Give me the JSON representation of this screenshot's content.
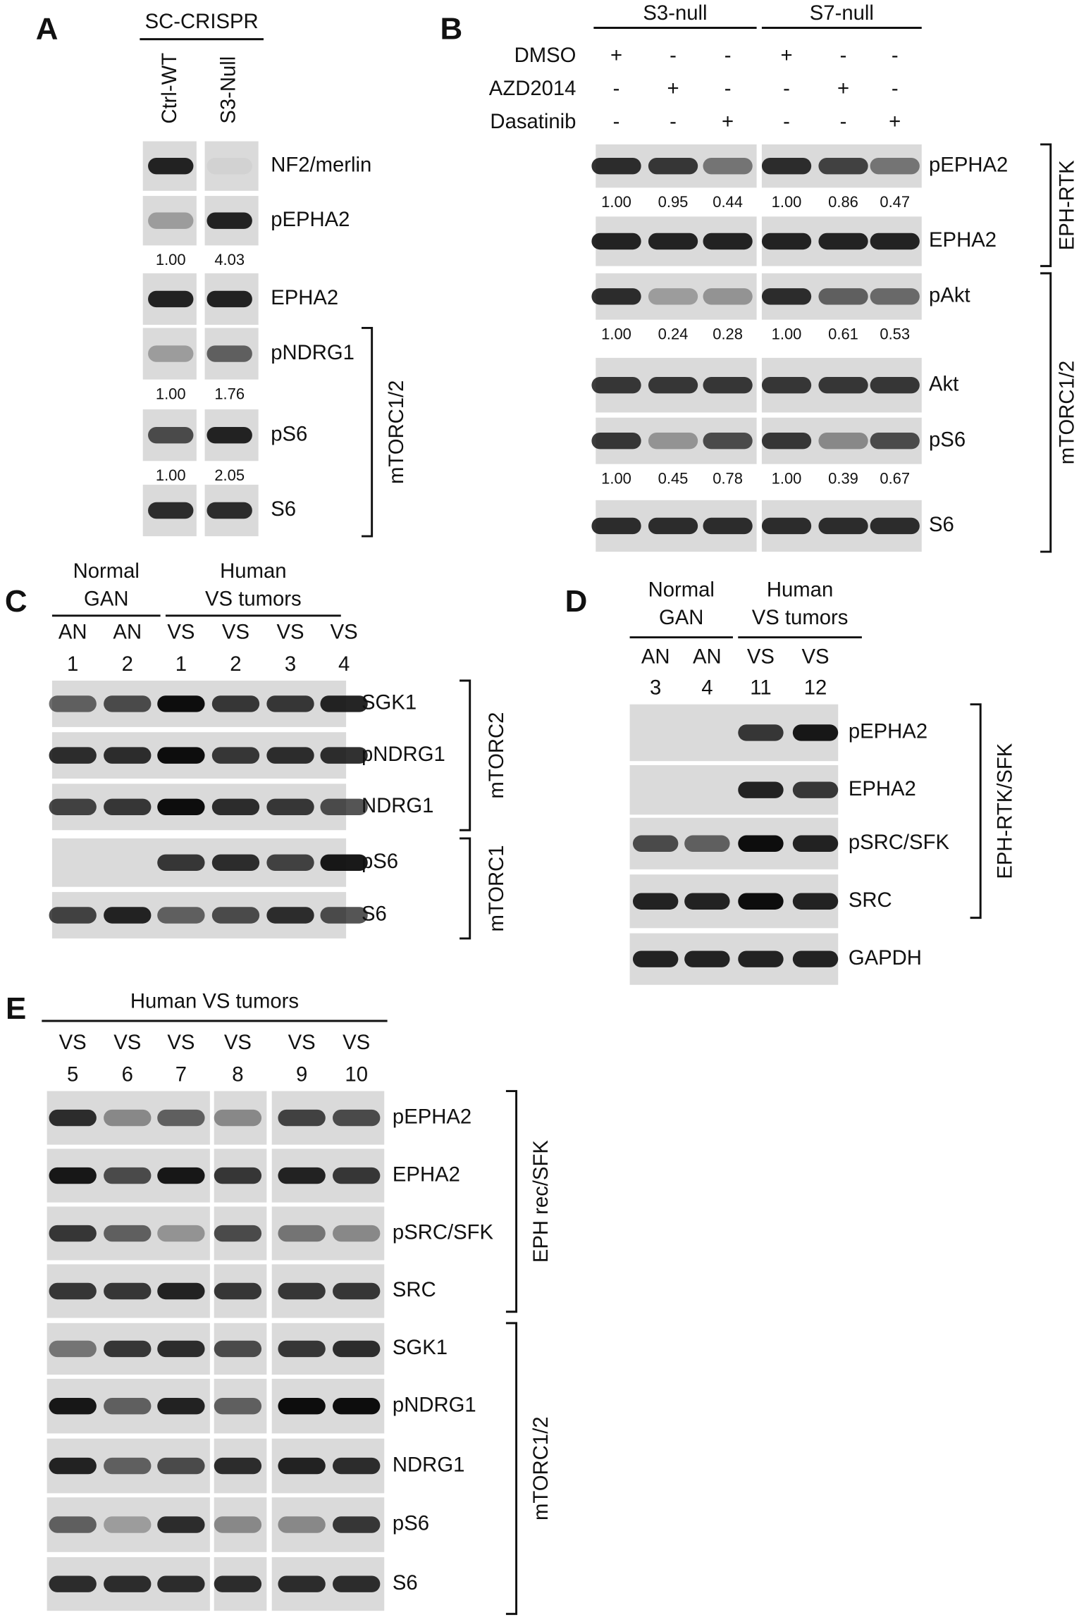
{
  "panels": [
    {
      "letter": "A",
      "groups": [
        {
          "lines": [
            "SC-CRISPR"
          ]
        }
      ],
      "lanes": [
        [
          "Ctrl-WT"
        ],
        [
          "S3-Null"
        ]
      ],
      "rows": [
        {
          "label": "NF2/merlin"
        },
        {
          "label": "pEPHA2",
          "quant": [
            "1.00",
            "4.03"
          ]
        },
        {
          "label": "EPHA2"
        },
        {
          "label": "pNDRG1",
          "quant": [
            "1.00",
            "1.76"
          ]
        },
        {
          "label": "pS6",
          "quant": [
            "1.00",
            "2.05"
          ]
        },
        {
          "label": "S6"
        }
      ],
      "brackets": [
        "mTORC1/2"
      ]
    },
    {
      "letter": "B",
      "groups": [
        {
          "lines": [
            "S3-null"
          ]
        },
        {
          "lines": [
            "S7-null"
          ]
        }
      ],
      "treatments": [
        {
          "name": "DMSO",
          "signs": [
            "+",
            "-",
            "-",
            "+",
            "-",
            "-"
          ]
        },
        {
          "name": "AZD2014",
          "signs": [
            "-",
            "+",
            "-",
            "-",
            "+",
            "-"
          ]
        },
        {
          "name": "Dasatinib",
          "signs": [
            "-",
            "-",
            "+",
            "-",
            "-",
            "+"
          ]
        }
      ],
      "rows": [
        {
          "label": "pEPHA2",
          "quant": [
            "1.00",
            "0.95",
            "0.44",
            "1.00",
            "0.86",
            "0.47"
          ]
        },
        {
          "label": "EPHA2"
        },
        {
          "label": "pAkt",
          "quant": [
            "1.00",
            "0.24",
            "0.28",
            "1.00",
            "0.61",
            "0.53"
          ]
        },
        {
          "label": "Akt"
        },
        {
          "label": "pS6",
          "quant": [
            "1.00",
            "0.45",
            "0.78",
            "1.00",
            "0.39",
            "0.67"
          ]
        },
        {
          "label": "S6"
        }
      ],
      "brackets": [
        "EPH-RTK",
        "mTORC1/2"
      ]
    },
    {
      "letter": "C",
      "groups": [
        {
          "lines": [
            "Normal",
            "GAN"
          ]
        },
        {
          "lines": [
            "Human",
            "VS tumors"
          ]
        }
      ],
      "lanes": [
        [
          "AN",
          "1"
        ],
        [
          "AN",
          "2"
        ],
        [
          "VS",
          "1"
        ],
        [
          "VS",
          "2"
        ],
        [
          "VS",
          "3"
        ],
        [
          "VS",
          "4"
        ]
      ],
      "rows": [
        {
          "label": "SGK1"
        },
        {
          "label": "pNDRG1"
        },
        {
          "label": "NDRG1"
        },
        {
          "label": "pS6"
        },
        {
          "label": "S6"
        }
      ],
      "brackets": [
        "mTORC2",
        "mTORC1"
      ]
    },
    {
      "letter": "D",
      "groups": [
        {
          "lines": [
            "Normal",
            "GAN"
          ]
        },
        {
          "lines": [
            "Human",
            "VS tumors"
          ]
        }
      ],
      "lanes": [
        [
          "AN",
          "3"
        ],
        [
          "AN",
          "4"
        ],
        [
          "VS",
          "11"
        ],
        [
          "VS",
          "12"
        ]
      ],
      "rows": [
        {
          "label": "pEPHA2"
        },
        {
          "label": "EPHA2"
        },
        {
          "label": "pSRC/SFK"
        },
        {
          "label": "SRC"
        },
        {
          "label": "GAPDH"
        }
      ],
      "brackets": [
        "EPH-RTK/SFK"
      ]
    },
    {
      "letter": "E",
      "groups": [
        {
          "lines": [
            "Human VS tumors"
          ]
        }
      ],
      "lanes": [
        [
          "VS",
          "5"
        ],
        [
          "VS",
          "6"
        ],
        [
          "VS",
          "7"
        ],
        [
          "VS",
          "8"
        ],
        [
          "VS",
          "9"
        ],
        [
          "VS",
          "10"
        ]
      ],
      "rows": [
        {
          "label": "pEPHA2"
        },
        {
          "label": "EPHA2"
        },
        {
          "label": "pSRC/SFK"
        },
        {
          "label": "SRC"
        },
        {
          "label": "SGK1"
        },
        {
          "label": "pNDRG1"
        },
        {
          "label": "NDRG1"
        },
        {
          "label": "pS6"
        },
        {
          "label": "S6"
        }
      ],
      "brackets": [
        "EPH rec/SFK",
        "mTORC1/2"
      ]
    }
  ]
}
